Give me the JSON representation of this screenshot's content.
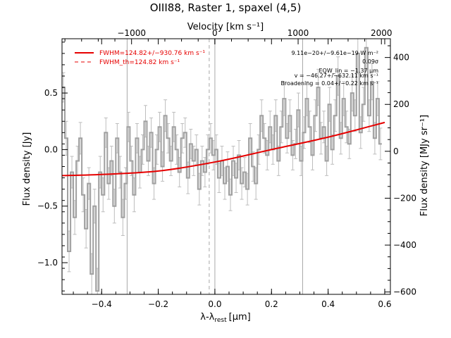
{
  "chart_data": {
    "type": "line",
    "title": "OIII88, Raster 1, spaxel (4,5)",
    "xlabel_main": "λ-λ",
    "xlabel_sub": "rest",
    "xlabel_unit": "[μm]",
    "ylabel_left": "Flux density [Jy]",
    "ylabel_right": "Flux density [MJy sr⁻¹]",
    "top_axis_label": "Velocity [km s⁻¹]",
    "xlim": [
      -0.54,
      0.62
    ],
    "ylim": [
      -1.28,
      0.98
    ],
    "right_ylim": [
      -610,
      480
    ],
    "velocity_lim": [
      -1835,
      2108
    ],
    "x_ticks": [
      -0.4,
      -0.2,
      0.0,
      0.2,
      0.4,
      0.6
    ],
    "x_tick_labels": [
      "−0.4",
      "−0.2",
      "0.0",
      "0.2",
      "0.4",
      "0.6"
    ],
    "y_ticks": [
      -1.0,
      -0.5,
      0.0,
      0.5
    ],
    "y_tick_labels": [
      "−1.0",
      "−0.5",
      "0.0",
      "0.5"
    ],
    "right_ticks": [
      -600,
      -400,
      -200,
      0,
      200,
      400
    ],
    "right_tick_labels": [
      "−600",
      "−400",
      "−200",
      "0",
      "200",
      "400"
    ],
    "top_ticks": [
      -1000,
      0,
      1000,
      2000
    ],
    "top_tick_labels": [
      "−1000",
      "0",
      "1000",
      "2000"
    ],
    "vlines_solid": [
      -0.31,
      0.0,
      0.31
    ],
    "vline_dashed": -0.02,
    "legend": {
      "placement": "top-left",
      "entries": [
        {
          "label": "FWHM=124.82+/−930.76 km s⁻¹",
          "style": "solid"
        },
        {
          "label": "FWHM_th=124.82 km s⁻¹",
          "style": "dashed"
        }
      ]
    },
    "annotations": [
      "9.11e−20+/−9.61e−19 W m⁻²",
      "0.09σ",
      "EQW_lin = −1.37 μm",
      "v = −46.27+/−632.11 km s⁻¹",
      "Broadening = 0.04+/−0.22 km s⁻¹"
    ],
    "fit": {
      "name": "FWHM=124.82+/−930.76 km s⁻¹",
      "color": "#e60000",
      "x": [
        -0.54,
        -0.4,
        -0.2,
        0.0,
        0.2,
        0.4,
        0.6
      ],
      "y": [
        -0.23,
        -0.22,
        -0.19,
        -0.11,
        0.0,
        0.11,
        0.24
      ]
    },
    "spectrum": {
      "color": "#a0a0a0",
      "x": [
        -0.535,
        -0.525,
        -0.515,
        -0.505,
        -0.495,
        -0.485,
        -0.475,
        -0.465,
        -0.455,
        -0.445,
        -0.435,
        -0.425,
        -0.415,
        -0.405,
        -0.395,
        -0.385,
        -0.375,
        -0.365,
        -0.355,
        -0.345,
        -0.335,
        -0.325,
        -0.315,
        -0.305,
        -0.295,
        -0.285,
        -0.275,
        -0.265,
        -0.255,
        -0.245,
        -0.235,
        -0.225,
        -0.215,
        -0.205,
        -0.195,
        -0.185,
        -0.175,
        -0.165,
        -0.155,
        -0.145,
        -0.135,
        -0.125,
        -0.115,
        -0.105,
        -0.095,
        -0.085,
        -0.075,
        -0.065,
        -0.055,
        -0.045,
        -0.035,
        -0.025,
        -0.015,
        -0.005,
        0.005,
        0.015,
        0.025,
        0.035,
        0.045,
        0.055,
        0.065,
        0.075,
        0.085,
        0.095,
        0.105,
        0.115,
        0.125,
        0.135,
        0.145,
        0.155,
        0.165,
        0.175,
        0.185,
        0.195,
        0.205,
        0.215,
        0.225,
        0.235,
        0.245,
        0.255,
        0.265,
        0.275,
        0.285,
        0.295,
        0.305,
        0.315,
        0.325,
        0.335,
        0.345,
        0.355,
        0.365,
        0.375,
        0.385,
        0.395,
        0.405,
        0.415,
        0.425,
        0.435,
        0.445,
        0.455,
        0.465,
        0.475,
        0.485,
        0.495,
        0.505,
        0.515,
        0.525,
        0.535,
        0.545,
        0.555,
        0.565,
        0.575,
        0.585
      ],
      "y": [
        0.55,
        0.1,
        -0.9,
        -0.2,
        -0.6,
        -0.1,
        0.1,
        -0.4,
        -0.7,
        -0.3,
        -1.1,
        -0.5,
        -1.25,
        -0.2,
        -0.4,
        0.15,
        -0.3,
        -0.1,
        -0.5,
        0.1,
        -0.2,
        -0.6,
        -0.3,
        0.2,
        -0.1,
        -0.4,
        0.1,
        -0.2,
        0.0,
        0.25,
        -0.1,
        0.15,
        -0.3,
        0.0,
        0.2,
        -0.15,
        0.3,
        0.1,
        -0.1,
        0.2,
        0.0,
        -0.2,
        0.1,
        0.15,
        -0.25,
        0.05,
        -0.1,
        0.0,
        -0.35,
        -0.1,
        -0.2,
        0.0,
        0.1,
        -0.05,
        0.0,
        -0.25,
        -0.1,
        -0.3,
        -0.15,
        -0.4,
        -0.1,
        -0.25,
        -0.05,
        -0.3,
        -0.2,
        -0.35,
        0.1,
        -0.15,
        -0.3,
        0.0,
        0.3,
        0.1,
        -0.05,
        0.2,
        0.0,
        0.3,
        -0.1,
        0.2,
        0.45,
        0.1,
        0.3,
        -0.05,
        0.05,
        0.35,
        -0.1,
        0.15,
        0.45,
        0.2,
        -0.05,
        0.3,
        0.55,
        0.1,
        0.2,
        -0.1,
        0.4,
        0.0,
        0.3,
        0.65,
        0.1,
        0.45,
        0.2,
        0.05,
        0.5,
        0.3,
        0.85,
        0.15,
        0.4,
        0.9,
        0.3,
        0.6,
        0.1,
        0.45,
        0.05
      ],
      "err": [
        0.13,
        0.15,
        0.18,
        0.14,
        0.15,
        0.13,
        0.14,
        0.15,
        0.17,
        0.14,
        0.18,
        0.15,
        0.2,
        0.14,
        0.15,
        0.13,
        0.14,
        0.13,
        0.15,
        0.13,
        0.14,
        0.16,
        0.14,
        0.13,
        0.13,
        0.15,
        0.13,
        0.14,
        0.13,
        0.14,
        0.13,
        0.13,
        0.14,
        0.13,
        0.13,
        0.13,
        0.14,
        0.13,
        0.13,
        0.13,
        0.13,
        0.13,
        0.13,
        0.13,
        0.14,
        0.13,
        0.13,
        0.13,
        0.14,
        0.13,
        0.13,
        0.13,
        0.13,
        0.13,
        0.13,
        0.13,
        0.13,
        0.14,
        0.13,
        0.14,
        0.13,
        0.13,
        0.13,
        0.14,
        0.13,
        0.14,
        0.13,
        0.13,
        0.14,
        0.13,
        0.14,
        0.13,
        0.13,
        0.14,
        0.13,
        0.14,
        0.13,
        0.14,
        0.15,
        0.13,
        0.14,
        0.13,
        0.13,
        0.15,
        0.13,
        0.14,
        0.15,
        0.14,
        0.13,
        0.14,
        0.16,
        0.14,
        0.14,
        0.13,
        0.15,
        0.13,
        0.14,
        0.17,
        0.14,
        0.15,
        0.14,
        0.13,
        0.16,
        0.14,
        0.18,
        0.14,
        0.15,
        0.18,
        0.14,
        0.16,
        0.14,
        0.15,
        0.14
      ]
    }
  }
}
